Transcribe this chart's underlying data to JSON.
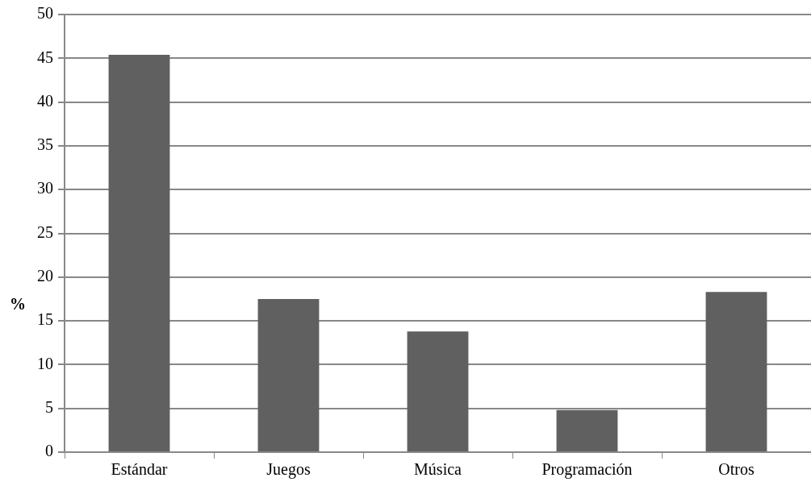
{
  "chart_data": {
    "type": "bar",
    "ylabel": "%",
    "categories": [
      "Estándar",
      "Juegos",
      "Música",
      "Programación",
      "Otros"
    ],
    "values": [
      45.4,
      17.5,
      13.8,
      4.8,
      18.3
    ],
    "color": "#606060",
    "ylim": [
      0,
      50
    ],
    "yticks": [
      0,
      5,
      10,
      15,
      20,
      25,
      30,
      35,
      40,
      45,
      50
    ],
    "grid": "y",
    "legend": false
  }
}
